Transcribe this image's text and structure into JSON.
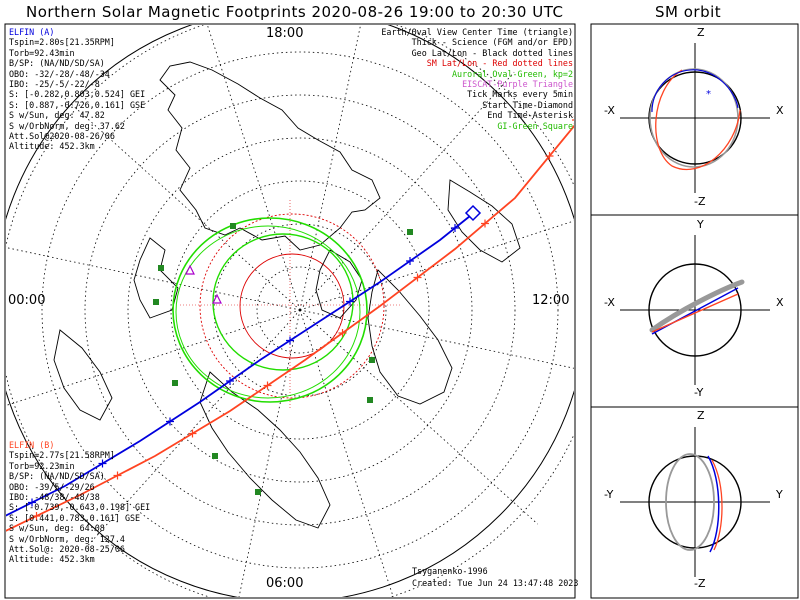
{
  "header": {
    "title": "Northern Solar Magnetic Footprints 2020-08-26 19:00 to 20:30 UTC",
    "orbit_title": "SM orbit"
  },
  "colors": {
    "elfin_a": "#0000dd",
    "elfin_b": "#ff4422",
    "auroral": "#22dd00",
    "grid": "#000000",
    "sm_grid": "#dd0000",
    "eiscat": "#aa00cc",
    "stations": "#228822",
    "orbit_ref": "#999999"
  },
  "legend": [
    {
      "text": "Earth/Oval View Center Time (triangle)",
      "color": "#000000"
    },
    {
      "text": "Thick - Science (FGM and/or EPD)",
      "color": "#000000"
    },
    {
      "text": "Geo Lat/Lon - Black dotted lines",
      "color": "#000000"
    },
    {
      "text": "SM Lat/Lon - Red dotted lines",
      "color": "#dd0000"
    },
    {
      "text": "Auroral Oval-Green, kp=2",
      "color": "#22bb00"
    },
    {
      "text": "EISCAT-Purple Triangle",
      "color": "#cc55cc"
    },
    {
      "text": "Tick Marks every 5min",
      "color": "#000000"
    },
    {
      "text": "Start Time-Diamond",
      "color": "#000000"
    },
    {
      "text": "End Time-Asterisk",
      "color": "#000000"
    },
    {
      "text": "GI-Green Square",
      "color": "#22bb00"
    }
  ],
  "elfin_a": {
    "name": "ELFIN (A)",
    "lines": [
      "Tspin=2.80s[21.35RPM]",
      "Torb=92.43min",
      "B/SP: (NA/ND/SD/SA)",
      "OBO: -32/-28/-48/-34",
      "IBO: -25/-5/-22/-8",
      "S: [-0.282,0.803,0.524] GEI",
      "S: [0.887,-0.726,0.161] GSE",
      "S w/Sun, deg: 47.82",
      "S w/OrbNorm, deg: 37.62",
      "Att.Sol@2020-08-26/06",
      "Altitude: 452.3km"
    ]
  },
  "elfin_b": {
    "name": "ELFIN (B)",
    "lines": [
      "Tspin=2.77s[21.58RPM]",
      "Torb=92.23min",
      "B/SP: (NA/ND/SD/SA)",
      "OBO: -39/5/-29/26",
      "IBO: -48/38/-48/38",
      "S: [-0.739,-0.643,0.198] GEI",
      "S: [0.441,0.783,0.161] GSE",
      "S w/Sun, deg: 64.08",
      "S w/OrbNorm, deg: 127.4",
      "Att.Sol@: 2020-08-25/06",
      "Altitude: 452.3km"
    ]
  },
  "credits": {
    "model": "Tsyganenko-1996",
    "created": "Created: Tue Jun 24 13:47:48 2023"
  },
  "chart_data": [
    {
      "type": "scatter",
      "title": "Northern Solar Magnetic Footprints 2020-08-26 19:00 to 20:30 UTC",
      "projection": "polar, north-pole centered, magnetic local time",
      "mlt_labels": {
        "top": "18:00",
        "left": "00:00",
        "right": "12:00",
        "bottom": "06:00"
      },
      "geo_colatitude_rings_deg": [
        10,
        20,
        30,
        40,
        50,
        60,
        70
      ],
      "geo_longitude_spokes_deg": 30,
      "sm_colatitude_rings_deg": [
        10,
        20
      ],
      "auroral_oval_kp": 2,
      "tick_interval_min": 5,
      "series": [
        {
          "name": "ELFIN (A) footprint",
          "color": "#0000dd",
          "path_xy": [
            [
              -0.97,
              -0.73
            ],
            [
              -0.75,
              -0.62
            ],
            [
              -0.5,
              -0.47
            ],
            [
              -0.3,
              -0.34
            ],
            [
              -0.1,
              -0.2
            ],
            [
              0.1,
              -0.07
            ],
            [
              0.3,
              0.06
            ],
            [
              0.5,
              0.2
            ],
            [
              0.6,
              0.28
            ]
          ],
          "start_marker": "diamond",
          "start_xy": [
            0.61,
            0.29
          ]
        },
        {
          "name": "ELFIN (B) footprint",
          "color": "#ff4422",
          "path_xy": [
            [
              -0.99,
              -0.79
            ],
            [
              -0.7,
              -0.65
            ],
            [
              -0.45,
              -0.52
            ],
            [
              -0.2,
              -0.37
            ],
            [
              0.05,
              -0.2
            ],
            [
              0.3,
              -0.02
            ],
            [
              0.55,
              0.17
            ],
            [
              0.75,
              0.34
            ],
            [
              0.98,
              0.62
            ]
          ],
          "end_marker": "asterisk",
          "end_xy": [
            0.96,
            0.6
          ]
        }
      ]
    },
    {
      "type": "line",
      "title": "SM orbit",
      "panels": [
        {
          "plane": "X-Z",
          "labels": {
            "top": "Z",
            "bottom": "-Z",
            "left": "-X",
            "right": "X"
          }
        },
        {
          "plane": "X-Y",
          "labels": {
            "top": "Y",
            "bottom": "-Y",
            "left": "-X",
            "right": "X"
          }
        },
        {
          "plane": "Y-Z",
          "labels": {
            "top": "Z",
            "bottom": "-Z",
            "left": "-Y",
            "right": "Y"
          }
        }
      ],
      "series": [
        "ELFIN (A)",
        "ELFIN (B)",
        "Earth reference circle"
      ]
    }
  ]
}
